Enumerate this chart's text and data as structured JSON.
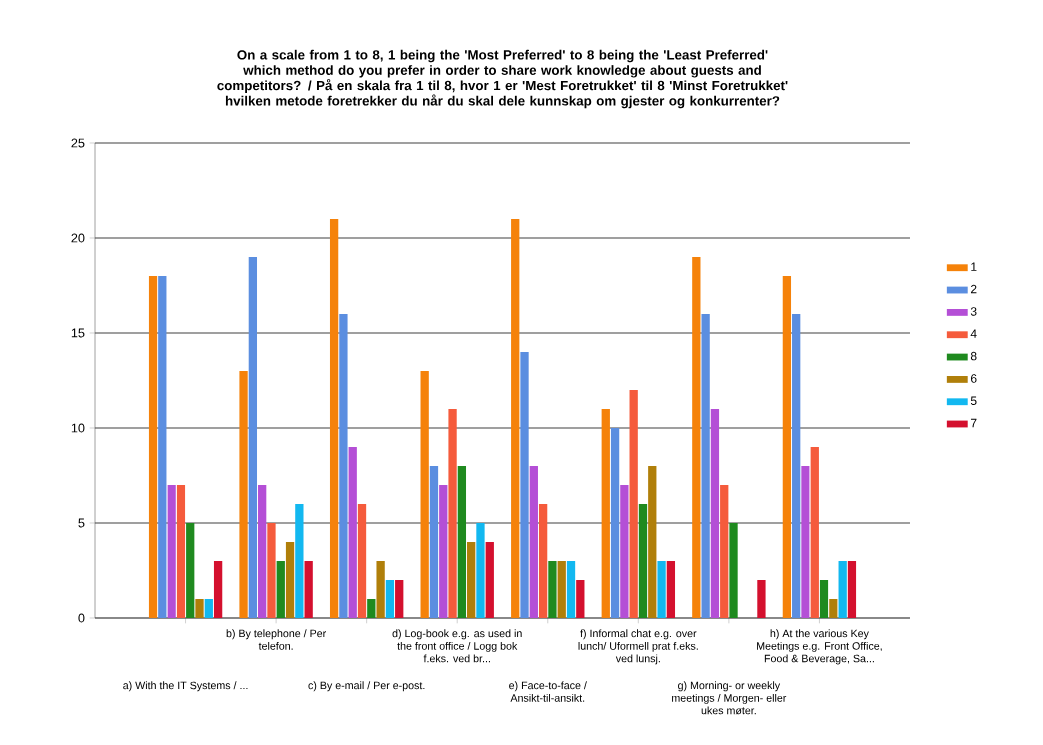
{
  "chart_data": {
    "type": "bar",
    "title": "On a scale from 1 to 8, 1 being the 'Most Preferred' to 8 being the 'Least Preferred' which method do you prefer in order to share work knowledge about guests and competitors? / På en skala fra 1 til 8, hvor 1 er 'Mest Foretrukket' til 8 'Minst Foretrukket' hvilken metode foretrekker du når du skal dele kunnskap om gjester og konkurrenter?",
    "categories": [
      "a) With the IT Systems / ...",
      "b) By telephone / Per telefon.",
      "c) By e-mail / Per e-post.",
      "d) Log-book e.g. as used in the front office / Logg bok f.eks. ved br...",
      "e) Face-to-face / Ansikt-til-ansikt.",
      "f) Informal chat e.g. over lunch/ Uformell prat f.eks. ved lunsj.",
      "g) Morning- or weekly meetings / Morgen- eller ukes møter.",
      "h) At the various Key Meetings e.g. Front Office, Food & Beverage, Sa..."
    ],
    "series": [
      {
        "name": "1",
        "color": "#f5820a",
        "values": [
          18,
          13,
          21,
          13,
          21,
          11,
          19,
          18
        ]
      },
      {
        "name": "2",
        "color": "#5b8ee0",
        "values": [
          18,
          19,
          16,
          8,
          14,
          10,
          16,
          16
        ]
      },
      {
        "name": "3",
        "color": "#b44fd6",
        "values": [
          7,
          7,
          9,
          7,
          8,
          7,
          11,
          8
        ]
      },
      {
        "name": "4",
        "color": "#f55b3c",
        "values": [
          7,
          5,
          6,
          11,
          6,
          12,
          7,
          9
        ]
      },
      {
        "name": "8",
        "color": "#1f8a1f",
        "values": [
          5,
          3,
          1,
          8,
          3,
          6,
          5,
          2
        ]
      },
      {
        "name": "6",
        "color": "#b07f0a",
        "values": [
          1,
          4,
          3,
          4,
          3,
          8,
          0,
          1
        ]
      },
      {
        "name": "5",
        "color": "#12b8f0",
        "values": [
          1,
          6,
          2,
          5,
          3,
          3,
          0,
          3
        ]
      },
      {
        "name": "7",
        "color": "#d4102e",
        "values": [
          3,
          3,
          2,
          4,
          2,
          3,
          2,
          3
        ]
      }
    ],
    "ylim": [
      0,
      25
    ],
    "yticks": [
      0,
      5,
      10,
      15,
      20,
      25
    ],
    "grid": "y",
    "legend": "right"
  }
}
